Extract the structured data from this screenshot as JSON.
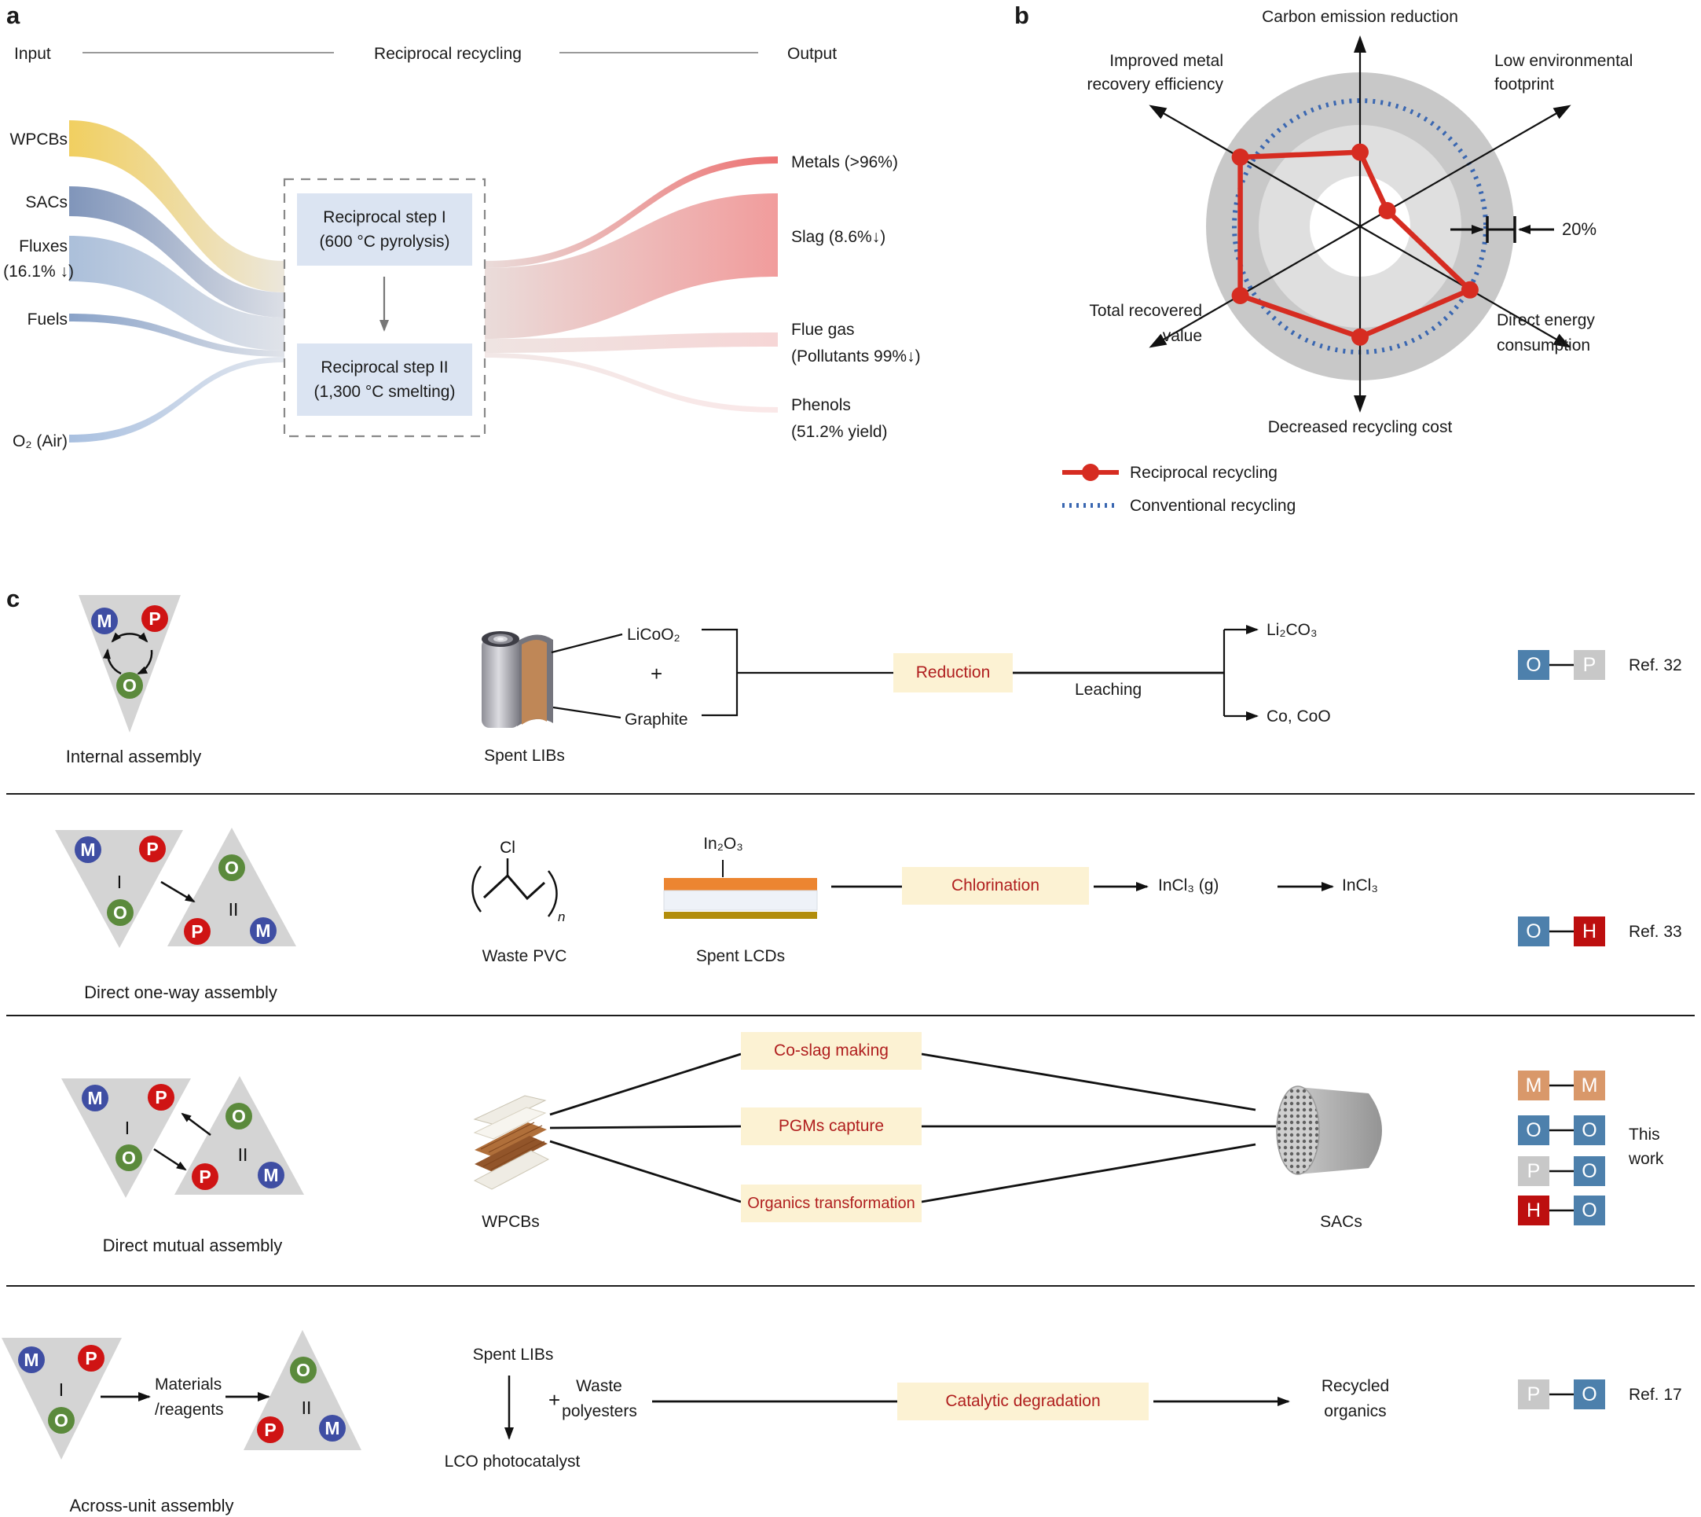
{
  "figure_title": "Reciprocal recycling figure",
  "panel_a": {
    "letter": "a",
    "header": {
      "input": "Input",
      "title": "Reciprocal recycling",
      "output": "Output"
    },
    "inputs": {
      "wpcbs": "WPCBs",
      "sacs": "SACs",
      "fluxes": "Fluxes",
      "fluxes_note": "(16.1% ↓)",
      "fuels": "Fuels",
      "o2": "O₂ (Air)"
    },
    "steps": {
      "s1a": "Reciprocal step I",
      "s1b": "(600 °C pyrolysis)",
      "s2a": "Reciprocal step II",
      "s2b": "(1,300 °C smelting)"
    },
    "outputs": {
      "metals": "Metals (>96%)",
      "slag": "Slag (8.6%↓)",
      "flue1": "Flue gas",
      "flue2": "(Pollutants 99%↓)",
      "phenols1": "Phenols",
      "phenols2": "(51.2% yield)"
    }
  },
  "panel_b": {
    "letter": "b",
    "axis_labels": {
      "top": "Carbon emission reduction",
      "upper_left1": "Improved metal",
      "upper_left2": "recovery efficiency",
      "upper_right1": "Low environmental",
      "upper_right2": "footprint",
      "lower_left1": "Total recovered",
      "lower_left2": "value",
      "lower_right1": "Direct energy",
      "lower_right2": "consumption",
      "bottom": "Decreased recycling cost"
    },
    "scale_label": "20%",
    "legend": {
      "series1": "Reciprocal recycling",
      "series2": "Conventional recycling"
    }
  },
  "chart_data": {
    "type": "radar",
    "title": "Reciprocal vs conventional recycling performance",
    "axes": [
      "Carbon emission reduction",
      "Low environmental footprint",
      "Direct energy consumption",
      "Decreased recycling cost",
      "Total recovered value",
      "Improved metal recovery efficiency"
    ],
    "series": [
      {
        "name": "Reciprocal recycling",
        "values_pct_of_conventional": [
          59,
          25,
          101,
          88,
          110,
          110
        ],
        "color": "#d62c21",
        "style": "solid-with-dots"
      },
      {
        "name": "Conventional recycling",
        "values_pct_of_conventional": [
          100,
          100,
          100,
          100,
          100,
          100
        ],
        "color": "#3a67b1",
        "style": "dotted"
      }
    ],
    "scale_marker": "20%",
    "ring_step_pct": 40,
    "radius_px_per_100pct": 160,
    "legend_position": "bottom-left",
    "grid": "concentric grey rings"
  },
  "panel_c": {
    "letter": "c",
    "units": {
      "M": "M",
      "P": "P",
      "O": "O",
      "I": "I",
      "II": "II"
    },
    "squares": {
      "O": "O",
      "P": "P",
      "H": "H",
      "M": "M"
    },
    "rows": {
      "r1": {
        "caption": "Internal assembly",
        "item": "Spent LIBs",
        "mat1": "LiCoO₂",
        "plus": "+",
        "mat2": "Graphite",
        "process": "Reduction",
        "step": "Leaching",
        "prod1": "Li₂CO₃",
        "prod2": "Co, CoO",
        "ref": "Ref. 32"
      },
      "r2": {
        "caption": "Direct one-way assembly",
        "cl": "Cl",
        "n": "n",
        "item1": "Waste PVC",
        "oxide": "In₂O₃",
        "item2": "Spent LCDs",
        "process": "Chlorination",
        "prod1": "InCl₃ (g)",
        "prod2": "InCl₃",
        "ref": "Ref. 33"
      },
      "r3": {
        "caption": "Direct mutual assembly",
        "item1": "WPCBs",
        "p1": "Co-slag making",
        "p2": "PGMs capture",
        "p3": "Organics transformation",
        "item2": "SACs",
        "ref1": "This",
        "ref2": "work"
      },
      "r4": {
        "caption": "Across-unit assembly",
        "arrow_label1": "Materials",
        "arrow_label2": "/reagents",
        "item1": "Spent LIBs",
        "cat": "LCO photocatalyst",
        "plus": "+",
        "item2a": "Waste",
        "item2b": "polyesters",
        "process": "Catalytic degradation",
        "prod1": "Recycled",
        "prod2": "organics",
        "ref": "Ref. 17"
      }
    }
  },
  "colors": {
    "accent_red": "#d62c21",
    "dotted_blue": "#3a67b1",
    "process_box_bg": "#fcf2d3",
    "process_box_text": "#b01e1e",
    "step_box_bg": "#dbe4f2",
    "triangle_grey": "#d4d4d4",
    "node_M": "#3f4ea3",
    "node_P": "#cf1414",
    "node_O": "#5b8a3c",
    "square_O": "#4d80ac",
    "square_P": "#c8c8c8",
    "square_H": "#bd0f0f",
    "square_M": "#d9986a",
    "flow_wpcbs": "#f1cf60",
    "flow_sacs": "#8095ba",
    "flow_fluxes": "#abbfda",
    "flow_metals": "#ec7272",
    "flow_slag": "#f19c9c"
  }
}
